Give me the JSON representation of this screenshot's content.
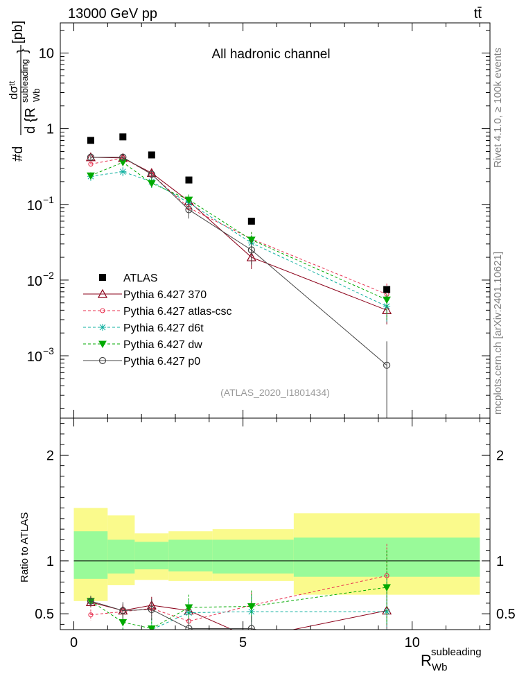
{
  "header": {
    "energy_label": "13000 GeV pp",
    "process_label": "tt̄"
  },
  "side_labels": {
    "rivet": "Rivet 4.1.0, ≥ 100k events",
    "mcplots": "mcplots.cern.ch [arXiv:2401.10621]"
  },
  "chart_data": {
    "type": "line",
    "title": "All hadronic channel",
    "analysis_tag": "(ATLAS_2020_I1801434)",
    "ylabel": "#d dσᵗᵗ / d {R_Wb^subleading} [pb]",
    "ylabel_parts": {
      "prefix": "#d",
      "numerator": "dσᵗᵗ",
      "denominator": "d {R",
      "denominator_sup": "subleading",
      "denominator_sub": "Wb",
      "denominator_end": "}",
      "unit": "[pb]"
    },
    "xlabel": "R_Wb^subleading",
    "xlabel_parts": {
      "base": "R",
      "sup": "subleading",
      "sub": "Wb"
    },
    "xlim": [
      -0.4,
      12.3
    ],
    "ylim": [
      0.00015,
      25
    ],
    "yscale": "log",
    "x_ticks": [
      0,
      5,
      10
    ],
    "y_tick_labels": {
      "10": "10",
      "1": "1",
      "0.1": {
        "base": "10",
        "exp": "−1"
      },
      "0.01": {
        "base": "10",
        "exp": "−2"
      },
      "0.001": {
        "base": "10",
        "exp": "−3"
      }
    },
    "bins": [
      [
        0,
        1
      ],
      [
        1,
        1.8
      ],
      [
        1.8,
        2.8
      ],
      [
        2.8,
        4.1
      ],
      [
        4.1,
        6.5
      ],
      [
        6.5,
        12
      ]
    ],
    "x": [
      0.5,
      1.45,
      2.3,
      3.4,
      5.25,
      9.25
    ],
    "data": {
      "name": "ATLAS",
      "values": [
        0.7,
        0.78,
        0.45,
        0.21,
        0.06,
        0.0075
      ],
      "color": "#000000"
    },
    "series": [
      {
        "name": "Pythia 6.427 370",
        "color": "#8b0019",
        "dash": "",
        "marker": "triangle",
        "values": [
          0.42,
          0.41,
          0.26,
          0.11,
          0.02,
          0.004
        ],
        "errors": [
          0.025,
          0.03,
          0.025,
          0.013,
          0.006,
          0.0014
        ]
      },
      {
        "name": "Pythia 6.427 atlas-csc",
        "color": "#e8304f",
        "dash": "4,3",
        "marker": "circle-small",
        "values": [
          0.34,
          0.41,
          0.25,
          0.09,
          0.035,
          0.0065
        ],
        "errors": [
          0.02,
          0.03,
          0.025,
          0.012,
          0.008,
          0.0025
        ]
      },
      {
        "name": "Pythia 6.427 d6t",
        "color": "#10b0a0",
        "dash": "4,3",
        "marker": "star",
        "values": [
          0.235,
          0.27,
          0.2,
          0.105,
          0.031,
          0.0045
        ],
        "errors": [
          0.03,
          0.04,
          0.035,
          0.015,
          0.008,
          0.0018
        ]
      },
      {
        "name": "Pythia 6.427 dw",
        "color": "#00aa00",
        "dash": "4,3",
        "marker": "triangle-down",
        "values": [
          0.24,
          0.36,
          0.19,
          0.115,
          0.034,
          0.0055
        ],
        "errors": [
          0.025,
          0.04,
          0.03,
          0.02,
          0.009,
          0.0025
        ]
      },
      {
        "name": "Pythia 6.427 p0",
        "color": "#444444",
        "dash": "",
        "marker": "circle",
        "values": [
          0.42,
          0.42,
          0.25,
          0.085,
          0.025,
          0.00075
        ],
        "errors": [
          0.03,
          0.03,
          0.03,
          0.02,
          0.009,
          0.0008
        ]
      }
    ],
    "ratio": {
      "ylabel": "Ratio to ATLAS",
      "ylim": [
        0.35,
        2.35
      ],
      "y_ticks": [
        0.5,
        1,
        2
      ],
      "y_tick_labels": [
        "0.5",
        "1",
        "2"
      ],
      "band_green": [
        [
          0.83,
          1.28
        ],
        [
          0.88,
          1.2
        ],
        [
          0.92,
          1.18
        ],
        [
          0.9,
          1.2
        ],
        [
          0.88,
          1.2
        ],
        [
          0.85,
          1.22
        ]
      ],
      "band_yellow": [
        [
          0.62,
          1.5
        ],
        [
          0.77,
          1.43
        ],
        [
          0.82,
          1.26
        ],
        [
          0.81,
          1.28
        ],
        [
          0.81,
          1.3
        ],
        [
          0.68,
          1.45
        ]
      ],
      "series_values": [
        [
          0.61,
          0.53,
          0.58,
          0.53,
          0.27,
          0.53
        ],
        [
          0.49,
          0.52,
          0.55,
          0.43,
          0.58,
          0.86
        ],
        [
          0.26,
          0.3,
          0.35,
          0.51,
          0.52,
          0.52
        ],
        [
          0.62,
          0.42,
          0.36,
          0.56,
          0.57,
          0.75
        ],
        [
          0.62,
          0.53,
          0.54,
          0.36,
          0.36,
          0.1
        ]
      ],
      "series_errors": [
        [
          0.05,
          0.06,
          0.08,
          0.1,
          0.1,
          0.25
        ],
        [
          0.05,
          0.06,
          0.07,
          0.08,
          0.12,
          0.3
        ],
        [
          0.06,
          0.07,
          0.1,
          0.12,
          0.15,
          0.3
        ],
        [
          0.05,
          0.08,
          0.1,
          0.12,
          0.15,
          0.35
        ],
        [
          0.05,
          0.08,
          0.1,
          0.1,
          0.12,
          0.2
        ]
      ]
    }
  }
}
